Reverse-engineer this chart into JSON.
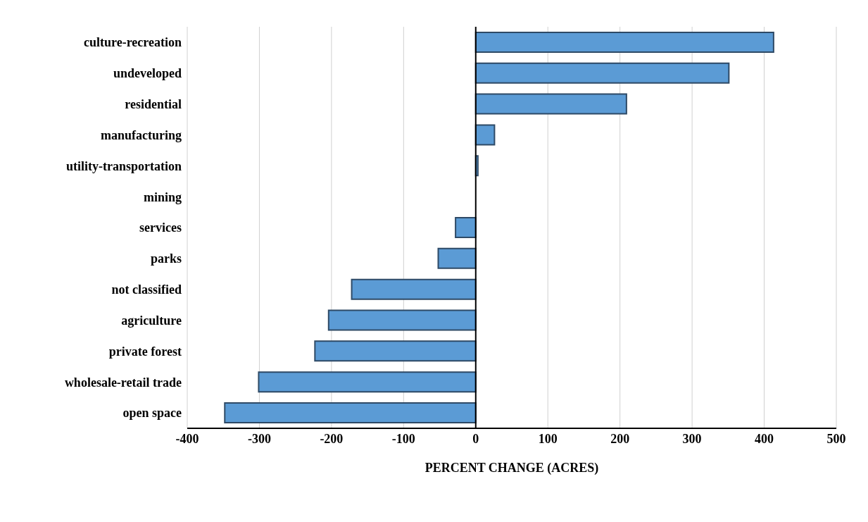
{
  "chart_data": {
    "type": "bar",
    "orientation": "horizontal",
    "xlabel": "PERCENT CHANGE (ACRES)",
    "categories": [
      "culture-recreation",
      "undeveloped",
      "residential",
      "manufacturing",
      "utility-transportation",
      "mining",
      "services",
      "parks",
      "not classified",
      "agriculture",
      "private forest",
      "wholesale-retail trade",
      "open space"
    ],
    "values": [
      413,
      351,
      209,
      26,
      3,
      0,
      -28,
      -52,
      -172,
      -204,
      -223,
      -301,
      -348
    ],
    "color": "#5b9bd5",
    "xlim": [
      -400,
      500
    ],
    "xticks": [
      -400,
      -300,
      -200,
      -100,
      0,
      100,
      200,
      300,
      400,
      500
    ],
    "grid": "x"
  }
}
